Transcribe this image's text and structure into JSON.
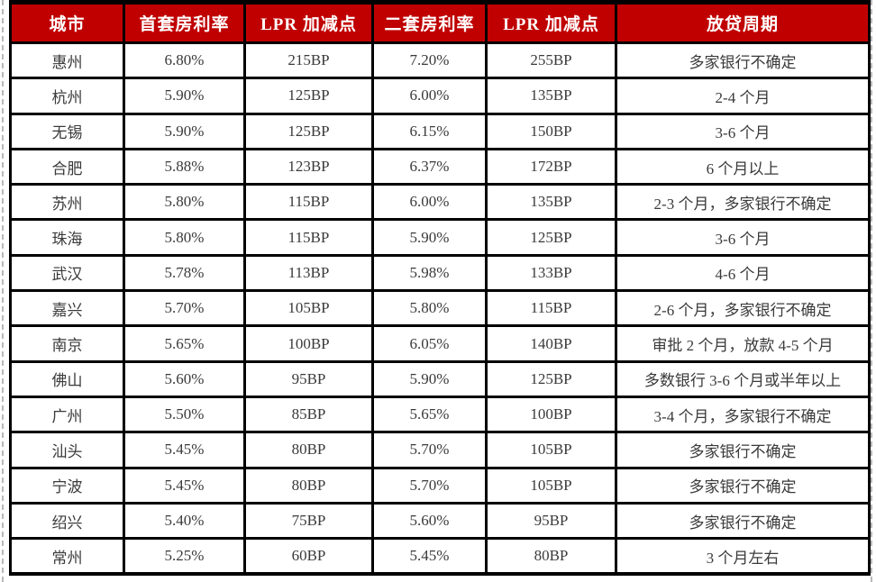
{
  "colors": {
    "header_bg": "#c00000",
    "header_text": "#ffffff",
    "body_text": "#3a3a3a",
    "border": "#000000",
    "dashed_guide": "#b9b9b9"
  },
  "chart_data": {
    "type": "table",
    "title": "",
    "columns": [
      "城市",
      "首套房利率",
      "LPR 加减点",
      "二套房利率",
      "LPR 加减点",
      "放贷周期"
    ],
    "rows": [
      [
        "惠州",
        "6.80%",
        "215BP",
        "7.20%",
        "255BP",
        "多家银行不确定"
      ],
      [
        "杭州",
        "5.90%",
        "125BP",
        "6.00%",
        "135BP",
        "2-4 个月"
      ],
      [
        "无锡",
        "5.90%",
        "125BP",
        "6.15%",
        "150BP",
        "3-6 个月"
      ],
      [
        "合肥",
        "5.88%",
        "123BP",
        "6.37%",
        "172BP",
        "6 个月以上"
      ],
      [
        "苏州",
        "5.80%",
        "115BP",
        "6.00%",
        "135BP",
        "2-3 个月，多家银行不确定"
      ],
      [
        "珠海",
        "5.80%",
        "115BP",
        "5.90%",
        "125BP",
        "3-6 个月"
      ],
      [
        "武汉",
        "5.78%",
        "113BP",
        "5.98%",
        "133BP",
        "4-6 个月"
      ],
      [
        "嘉兴",
        "5.70%",
        "105BP",
        "5.80%",
        "115BP",
        "2-6 个月，多家银行不确定"
      ],
      [
        "南京",
        "5.65%",
        "100BP",
        "6.05%",
        "140BP",
        "审批 2 个月，放款 4-5 个月"
      ],
      [
        "佛山",
        "5.60%",
        "95BP",
        "5.90%",
        "125BP",
        "多数银行 3-6 个月或半年以上"
      ],
      [
        "广州",
        "5.50%",
        "85BP",
        "5.65%",
        "100BP",
        "3-4 个月，多家银行不确定"
      ],
      [
        "汕头",
        "5.45%",
        "80BP",
        "5.70%",
        "105BP",
        "多家银行不确定"
      ],
      [
        "宁波",
        "5.45%",
        "80BP",
        "5.70%",
        "105BP",
        "多家银行不确定"
      ],
      [
        "绍兴",
        "5.40%",
        "75BP",
        "5.60%",
        "95BP",
        "多家银行不确定"
      ],
      [
        "常州",
        "5.25%",
        "60BP",
        "5.45%",
        "80BP",
        "3 个月左右"
      ]
    ]
  }
}
